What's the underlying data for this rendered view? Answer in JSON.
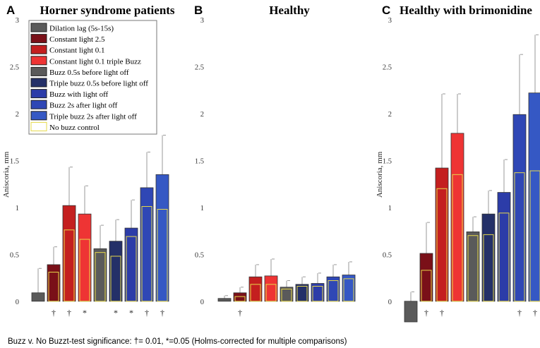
{
  "footnote": "Buzz v. No Buzzt-test significance:  †= 0.01, *=0.05 (Holms-corrected for multiple comparisons)",
  "legend": [
    {
      "label": "Dilation lag (5s-15s)",
      "color": "#5a5a5a"
    },
    {
      "label": "Constant light 2.5",
      "color": "#7a1018"
    },
    {
      "label": "Constant light 0.1",
      "color": "#c41f1f"
    },
    {
      "label": "Constant light 0.1 triple Buzz",
      "color": "#ee3434"
    },
    {
      "label": "Buzz 0.5s before light off",
      "color": "#5a5a5a"
    },
    {
      "label": "Triple buzz 0.5s before light off",
      "color": "#243068"
    },
    {
      "label": "Buzz with light off",
      "color": "#2c3ca8"
    },
    {
      "label": "Buzz 2s after light off",
      "color": "#2f47b5"
    },
    {
      "label": "Triple buzz 2s after light off",
      "color": "#3558c4"
    },
    {
      "label": "No buzz control",
      "color": "#ffffff",
      "outline": "#e6d84a"
    }
  ],
  "chart_data": [
    {
      "type": "bar",
      "panel": "A",
      "title": "Horner syndrome patients",
      "ylabel": "Aniscoria, mm",
      "ylim": [
        -0.25,
        3
      ],
      "yticks": [
        "0",
        "0.5",
        "1",
        "1.5",
        "2",
        "2.5",
        "3"
      ],
      "categories": [
        "Dilation lag (5s-15s)",
        "Constant light 2.5",
        "Constant light 0.1",
        "Constant light 0.1 triple Buzz",
        "Buzz 0.5s before light off",
        "Triple buzz 0.5s before light off",
        "Buzz with light off",
        "Buzz 2s after light off",
        "Triple buzz 2s after light off"
      ],
      "series": [
        {
          "name": "Buzz",
          "values": [
            0.09,
            0.39,
            1.02,
            0.93,
            0.56,
            0.64,
            0.78,
            1.21,
            1.35
          ]
        },
        {
          "name": "Error (upper)",
          "values": [
            0.35,
            0.58,
            1.43,
            1.23,
            0.81,
            0.87,
            1.08,
            1.59,
            1.77
          ]
        },
        {
          "name": "No buzz control",
          "values": [
            null,
            0.31,
            0.76,
            0.66,
            0.52,
            0.48,
            0.69,
            1.01,
            0.98
          ]
        }
      ],
      "significance": [
        "",
        "†",
        "†",
        "*",
        "",
        "*",
        "*",
        "†",
        "†"
      ]
    },
    {
      "type": "bar",
      "panel": "B",
      "title": "Healthy",
      "ylabel": "",
      "ylim": [
        -0.25,
        3
      ],
      "yticks": [
        "0",
        "0.5",
        "1",
        "1.5",
        "2",
        "2.5",
        "3"
      ],
      "categories": [
        "Dilation lag (5s-15s)",
        "Constant light 2.5",
        "Constant light 0.1",
        "Constant light 0.1 triple Buzz",
        "Buzz 0.5s before light off",
        "Triple buzz 0.5s before light off",
        "Buzz with light off",
        "Buzz 2s after light off",
        "Triple buzz 2s after light off"
      ],
      "series": [
        {
          "name": "Buzz",
          "values": [
            0.03,
            0.09,
            0.26,
            0.27,
            0.15,
            0.18,
            0.19,
            0.26,
            0.28
          ]
        },
        {
          "name": "Error (upper)",
          "values": [
            0.06,
            0.15,
            0.39,
            0.45,
            0.22,
            0.26,
            0.3,
            0.39,
            0.42
          ]
        },
        {
          "name": "No buzz control",
          "values": [
            null,
            0.05,
            0.18,
            0.18,
            0.13,
            0.16,
            0.16,
            0.22,
            0.24
          ]
        }
      ],
      "significance": [
        "",
        "†",
        "",
        "",
        "",
        "",
        "",
        "",
        ""
      ]
    },
    {
      "type": "bar",
      "panel": "C",
      "title": "Healthy with brimonidine",
      "ylabel": "Aniscoria, mm",
      "ylim": [
        -0.25,
        3
      ],
      "yticks": [
        "0",
        "0.5",
        "1",
        "1.5",
        "2",
        "2.5",
        "3"
      ],
      "categories": [
        "Dilation lag (5s-15s)",
        "Constant light 2.5",
        "Constant light 0.1",
        "Constant light 0.1 triple Buzz",
        "Buzz 0.5s before light off",
        "Triple buzz 0.5s before light off",
        "Buzz with light off",
        "Buzz 2s after light off",
        "Triple buzz 2s after light off"
      ],
      "series": [
        {
          "name": "Buzz",
          "values": [
            -0.22,
            0.51,
            1.42,
            1.79,
            0.74,
            0.93,
            1.16,
            1.99,
            2.22
          ]
        },
        {
          "name": "Error (upper)",
          "values": [
            0.1,
            0.84,
            2.21,
            2.21,
            0.9,
            1.18,
            1.51,
            2.63,
            2.84
          ]
        },
        {
          "name": "No buzz control",
          "values": [
            null,
            0.33,
            1.2,
            1.35,
            0.7,
            0.71,
            0.94,
            1.37,
            1.39
          ]
        }
      ],
      "significance": [
        "",
        "†",
        "†",
        "",
        "",
        "",
        "",
        "†",
        "†"
      ]
    }
  ]
}
